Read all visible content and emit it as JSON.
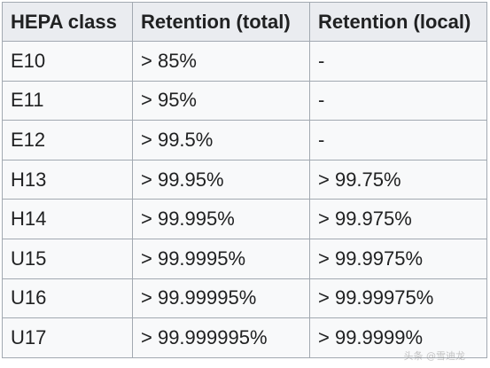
{
  "table": {
    "headers": [
      "HEPA class",
      "Retention (total)",
      "Retention (local)"
    ],
    "rows": [
      [
        "E10",
        "> 85%",
        "-"
      ],
      [
        "E11",
        "> 95%",
        "-"
      ],
      [
        "E12",
        "> 99.5%",
        "-"
      ],
      [
        "H13",
        "> 99.95%",
        "> 99.75%"
      ],
      [
        "H14",
        "> 99.995%",
        "> 99.975%"
      ],
      [
        "U15",
        "> 99.9995%",
        "> 99.9975%"
      ],
      [
        "U16",
        "> 99.99995%",
        "> 99.99975%"
      ],
      [
        "U17",
        "> 99.999995%",
        "> 99.9999%"
      ]
    ]
  },
  "watermark": "头条 @雪迪龙"
}
